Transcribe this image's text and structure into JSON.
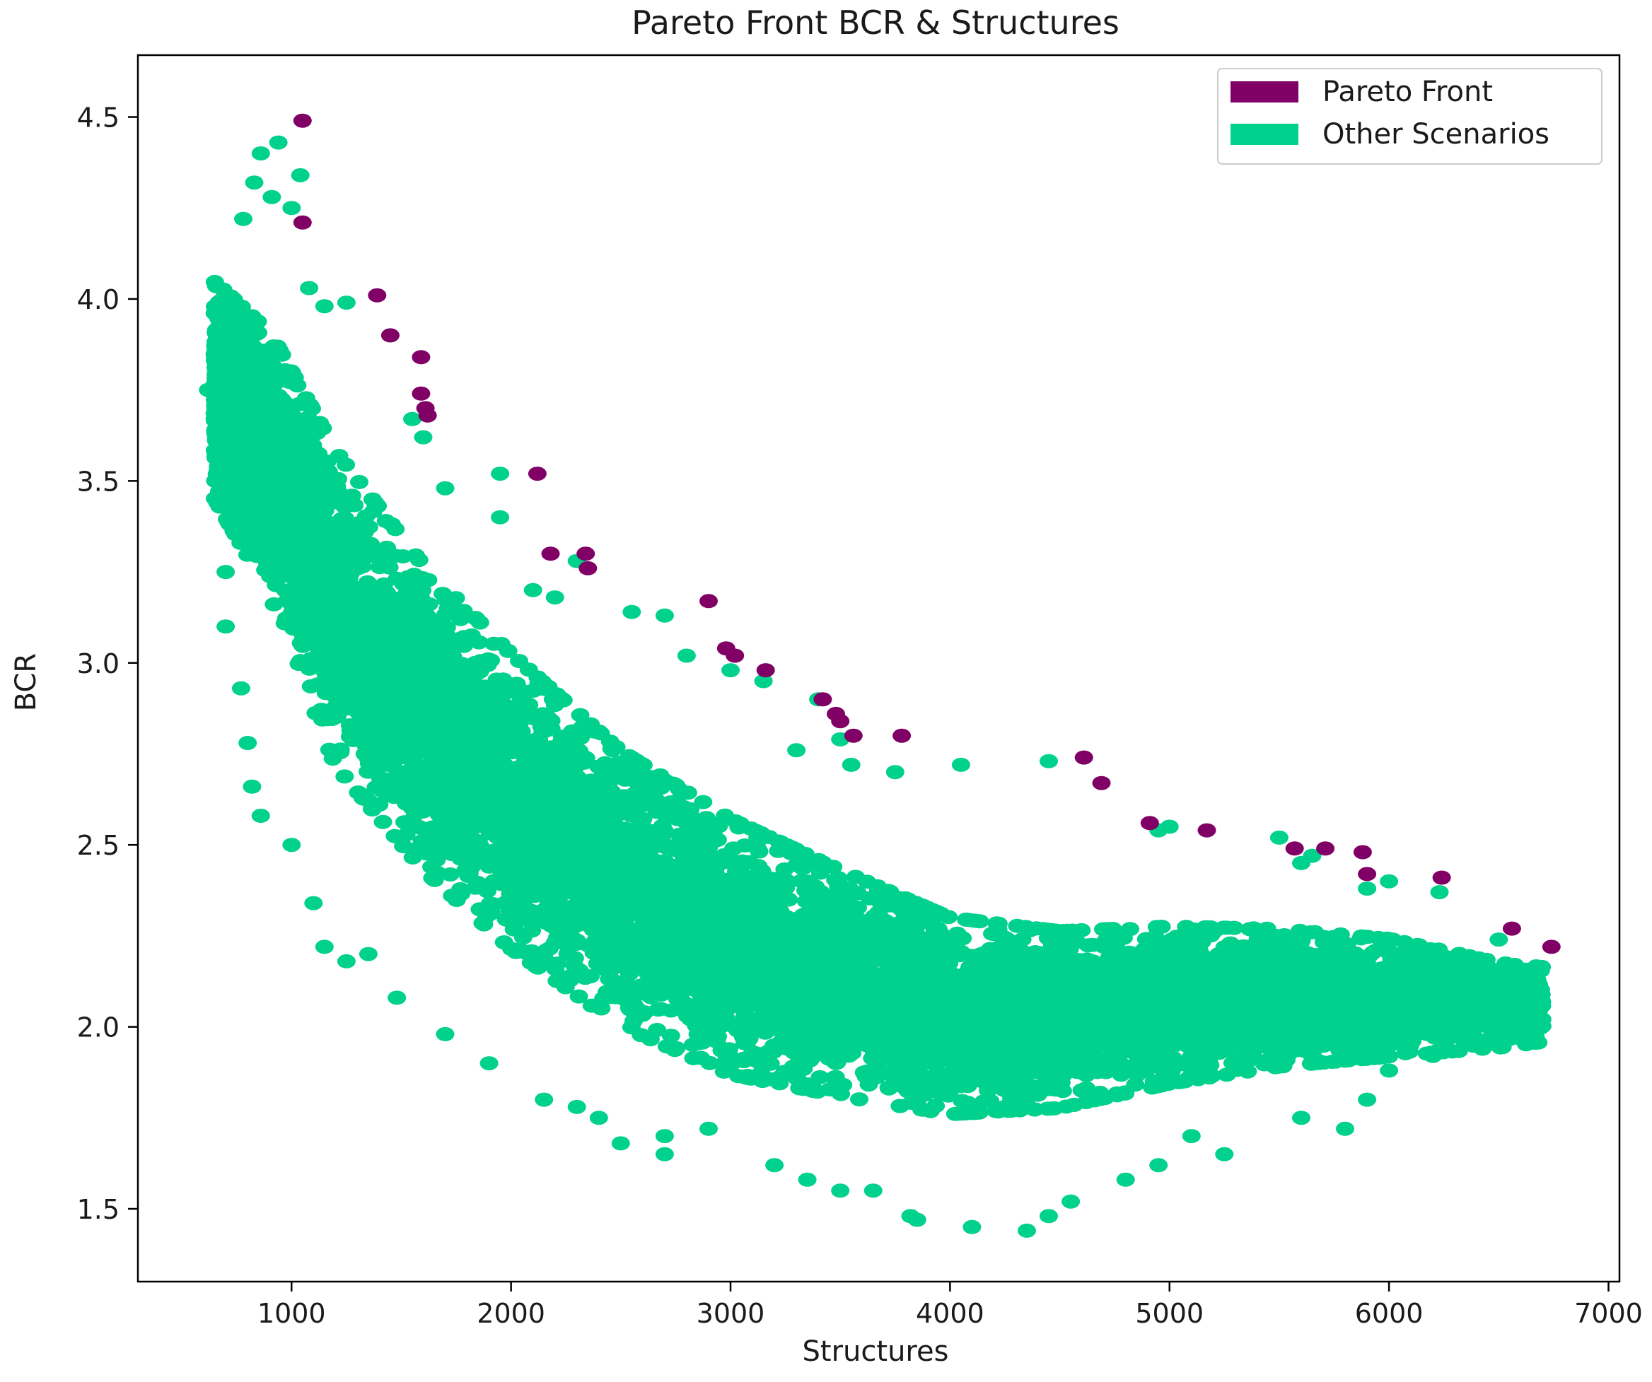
{
  "chart_data": {
    "type": "scatter",
    "title": "Pareto Front  BCR &  Structures",
    "xlabel": "Structures",
    "ylabel": "BCR",
    "xlim": [
      300,
      7050
    ],
    "ylim": [
      1.3,
      4.67
    ],
    "xticks": [
      1000,
      2000,
      3000,
      4000,
      5000,
      6000,
      7000
    ],
    "yticks": [
      1.5,
      2.0,
      2.5,
      3.0,
      3.5,
      4.0,
      4.5
    ],
    "grid": false,
    "legend": {
      "placement": "top-right",
      "entries": [
        {
          "label": "Pareto Front",
          "color": "#800066"
        },
        {
          "label": "Other Scenarios",
          "color": "#00d18c"
        }
      ]
    },
    "series": [
      {
        "name": "Other Scenarios",
        "color": "#00d18c",
        "cloud": {
          "count": 9000,
          "x_range": [
            650,
            6700
          ],
          "center_curve": [
            [
              650,
              3.75
            ],
            [
              900,
              3.55
            ],
            [
              1200,
              3.15
            ],
            [
              1600,
              2.85
            ],
            [
              2000,
              2.62
            ],
            [
              2500,
              2.38
            ],
            [
              3000,
              2.22
            ],
            [
              3500,
              2.12
            ],
            [
              4000,
              2.03
            ],
            [
              4500,
              2.02
            ],
            [
              5000,
              2.06
            ],
            [
              5500,
              2.08
            ],
            [
              6000,
              2.08
            ],
            [
              6500,
              2.06
            ]
          ],
          "spread": [
            [
              650,
              0.22
            ],
            [
              1200,
              0.32
            ],
            [
              2000,
              0.3
            ],
            [
              3000,
              0.26
            ],
            [
              4000,
              0.2
            ],
            [
              5000,
              0.16
            ],
            [
              6000,
              0.12
            ],
            [
              6600,
              0.08
            ]
          ]
        },
        "points": [
          [
            940,
            4.43
          ],
          [
            860,
            4.4
          ],
          [
            1040,
            4.34
          ],
          [
            910,
            4.28
          ],
          [
            1000,
            4.25
          ],
          [
            780,
            4.22
          ],
          [
            830,
            4.32
          ],
          [
            620,
            3.75
          ],
          [
            700,
            3.45
          ],
          [
            700,
            3.25
          ],
          [
            700,
            3.1
          ],
          [
            770,
            2.93
          ],
          [
            800,
            2.78
          ],
          [
            820,
            2.66
          ],
          [
            860,
            2.58
          ],
          [
            1000,
            2.5
          ],
          [
            1100,
            2.34
          ],
          [
            1150,
            2.22
          ],
          [
            1250,
            2.18
          ],
          [
            1350,
            2.2
          ],
          [
            1480,
            2.08
          ],
          [
            1700,
            1.98
          ],
          [
            1900,
            1.9
          ],
          [
            2150,
            1.8
          ],
          [
            2300,
            1.78
          ],
          [
            2400,
            1.75
          ],
          [
            2500,
            1.68
          ],
          [
            2700,
            1.7
          ],
          [
            2700,
            1.65
          ],
          [
            2900,
            1.72
          ],
          [
            3200,
            1.62
          ],
          [
            3350,
            1.58
          ],
          [
            3500,
            1.55
          ],
          [
            3650,
            1.55
          ],
          [
            3820,
            1.48
          ],
          [
            3850,
            1.47
          ],
          [
            4100,
            1.45
          ],
          [
            4350,
            1.44
          ],
          [
            4450,
            1.48
          ],
          [
            4550,
            1.52
          ],
          [
            4800,
            1.58
          ],
          [
            4950,
            1.62
          ],
          [
            5100,
            1.7
          ],
          [
            5250,
            1.65
          ],
          [
            5600,
            1.75
          ],
          [
            5800,
            1.72
          ],
          [
            5900,
            1.8
          ],
          [
            6000,
            1.88
          ],
          [
            6200,
            1.92
          ],
          [
            6500,
            2.05
          ],
          [
            6650,
            2.14
          ],
          [
            6500,
            2.24
          ],
          [
            6230,
            2.37
          ],
          [
            6000,
            2.4
          ],
          [
            5900,
            2.38
          ],
          [
            5650,
            2.47
          ],
          [
            5600,
            2.45
          ],
          [
            5500,
            2.52
          ],
          [
            5000,
            2.55
          ],
          [
            4950,
            2.54
          ],
          [
            4450,
            2.73
          ],
          [
            4050,
            2.72
          ],
          [
            3750,
            2.7
          ],
          [
            3550,
            2.72
          ],
          [
            3500,
            2.79
          ],
          [
            3300,
            2.76
          ],
          [
            3150,
            2.95
          ],
          [
            3000,
            2.98
          ],
          [
            2800,
            3.02
          ],
          [
            2700,
            3.13
          ],
          [
            2550,
            3.14
          ],
          [
            2300,
            3.28
          ],
          [
            2200,
            3.18
          ],
          [
            1950,
            3.4
          ],
          [
            1950,
            3.52
          ],
          [
            1700,
            3.48
          ],
          [
            1600,
            3.62
          ],
          [
            1550,
            3.67
          ],
          [
            1450,
            3.9
          ],
          [
            1250,
            3.99
          ],
          [
            1150,
            3.98
          ],
          [
            1080,
            4.03
          ],
          [
            2100,
            3.2
          ],
          [
            3400,
            2.9
          ]
        ]
      },
      {
        "name": "Pareto Front",
        "color": "#800066",
        "points": [
          [
            1050,
            4.49
          ],
          [
            1050,
            4.21
          ],
          [
            1390,
            4.01
          ],
          [
            1450,
            3.9
          ],
          [
            1590,
            3.84
          ],
          [
            1590,
            3.74
          ],
          [
            1610,
            3.7
          ],
          [
            1620,
            3.68
          ],
          [
            2120,
            3.52
          ],
          [
            2180,
            3.3
          ],
          [
            2340,
            3.3
          ],
          [
            2350,
            3.26
          ],
          [
            2900,
            3.17
          ],
          [
            2980,
            3.04
          ],
          [
            3020,
            3.02
          ],
          [
            3160,
            2.98
          ],
          [
            3420,
            2.9
          ],
          [
            3480,
            2.86
          ],
          [
            3500,
            2.84
          ],
          [
            3560,
            2.8
          ],
          [
            3780,
            2.8
          ],
          [
            4610,
            2.74
          ],
          [
            4690,
            2.67
          ],
          [
            4910,
            2.56
          ],
          [
            5170,
            2.54
          ],
          [
            5570,
            2.49
          ],
          [
            5710,
            2.49
          ],
          [
            5880,
            2.48
          ],
          [
            5900,
            2.42
          ],
          [
            6240,
            2.41
          ],
          [
            6560,
            2.27
          ],
          [
            6740,
            2.22
          ]
        ]
      }
    ]
  }
}
